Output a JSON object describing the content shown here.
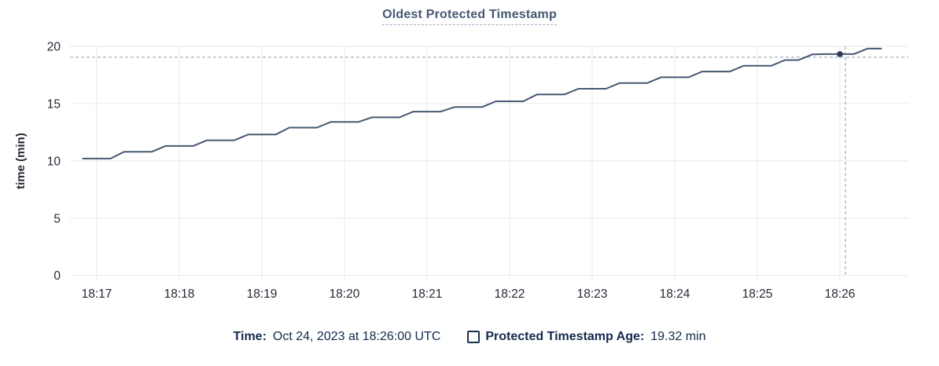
{
  "chart": {
    "title": "Oldest Protected Timestamp"
  },
  "legend": {
    "time_label": "Time:",
    "time_value": "Oct 24, 2023 at 18:26:00 UTC",
    "series_label": "Protected Timestamp Age:",
    "series_value": "19.32 min"
  },
  "colors": {
    "line": "#475872",
    "dot": "#2c3a55",
    "crosshair": "#a9bcc8",
    "grid": "#ececec",
    "axis_text": "#242a35",
    "title_text": "#475872",
    "title_underline": "#9cb0c4",
    "legend_text": "#132a4c",
    "checkbox_border": "#1c3150"
  },
  "chart_data": {
    "type": "line",
    "title": "Oldest Protected Timestamp",
    "xlabel": "",
    "ylabel": "time (min)",
    "ylim": [
      0,
      20
    ],
    "y_ticks": [
      0,
      5,
      10,
      15,
      20
    ],
    "x_ticks": [
      "18:17",
      "18:18",
      "18:19",
      "18:20",
      "18:21",
      "18:22",
      "18:23",
      "18:24",
      "18:25",
      "18:26"
    ],
    "grid": true,
    "legend_position": "bottom",
    "series": [
      {
        "name": "Protected Timestamp Age",
        "unit": "min",
        "x": [
          "18:16:50",
          "18:17:00",
          "18:17:10",
          "18:17:20",
          "18:17:30",
          "18:17:40",
          "18:17:50",
          "18:18:00",
          "18:18:10",
          "18:18:20",
          "18:18:30",
          "18:18:40",
          "18:18:50",
          "18:19:00",
          "18:19:10",
          "18:19:20",
          "18:19:30",
          "18:19:40",
          "18:19:50",
          "18:20:00",
          "18:20:10",
          "18:20:20",
          "18:20:30",
          "18:20:40",
          "18:20:50",
          "18:21:00",
          "18:21:10",
          "18:21:20",
          "18:21:30",
          "18:21:40",
          "18:21:50",
          "18:22:00",
          "18:22:10",
          "18:22:20",
          "18:22:30",
          "18:22:40",
          "18:22:50",
          "18:23:00",
          "18:23:10",
          "18:23:20",
          "18:23:30",
          "18:23:40",
          "18:23:50",
          "18:24:00",
          "18:24:10",
          "18:24:20",
          "18:24:30",
          "18:24:40",
          "18:24:50",
          "18:25:00",
          "18:25:10",
          "18:25:20",
          "18:25:30",
          "18:25:40",
          "18:25:50",
          "18:26:00",
          "18:26:10",
          "18:26:20",
          "18:26:30"
        ],
        "values": [
          10.2,
          10.2,
          10.2,
          10.8,
          10.8,
          10.8,
          11.3,
          11.3,
          11.3,
          11.8,
          11.8,
          11.8,
          12.3,
          12.3,
          12.3,
          12.9,
          12.9,
          12.9,
          13.4,
          13.4,
          13.4,
          13.8,
          13.8,
          13.8,
          14.3,
          14.3,
          14.3,
          14.7,
          14.7,
          14.7,
          15.2,
          15.2,
          15.2,
          15.8,
          15.8,
          15.8,
          16.3,
          16.3,
          16.3,
          16.8,
          16.8,
          16.8,
          17.3,
          17.3,
          17.3,
          17.8,
          17.8,
          17.8,
          18.3,
          18.3,
          18.3,
          18.8,
          18.8,
          19.3,
          19.32,
          19.32,
          19.32,
          19.8,
          19.8
        ]
      }
    ],
    "highlight_point": {
      "time": "18:26:00",
      "value": 19.32,
      "label": "19.32 min"
    },
    "crosshair": {
      "time": "18:26:04",
      "value": 19.05
    }
  }
}
